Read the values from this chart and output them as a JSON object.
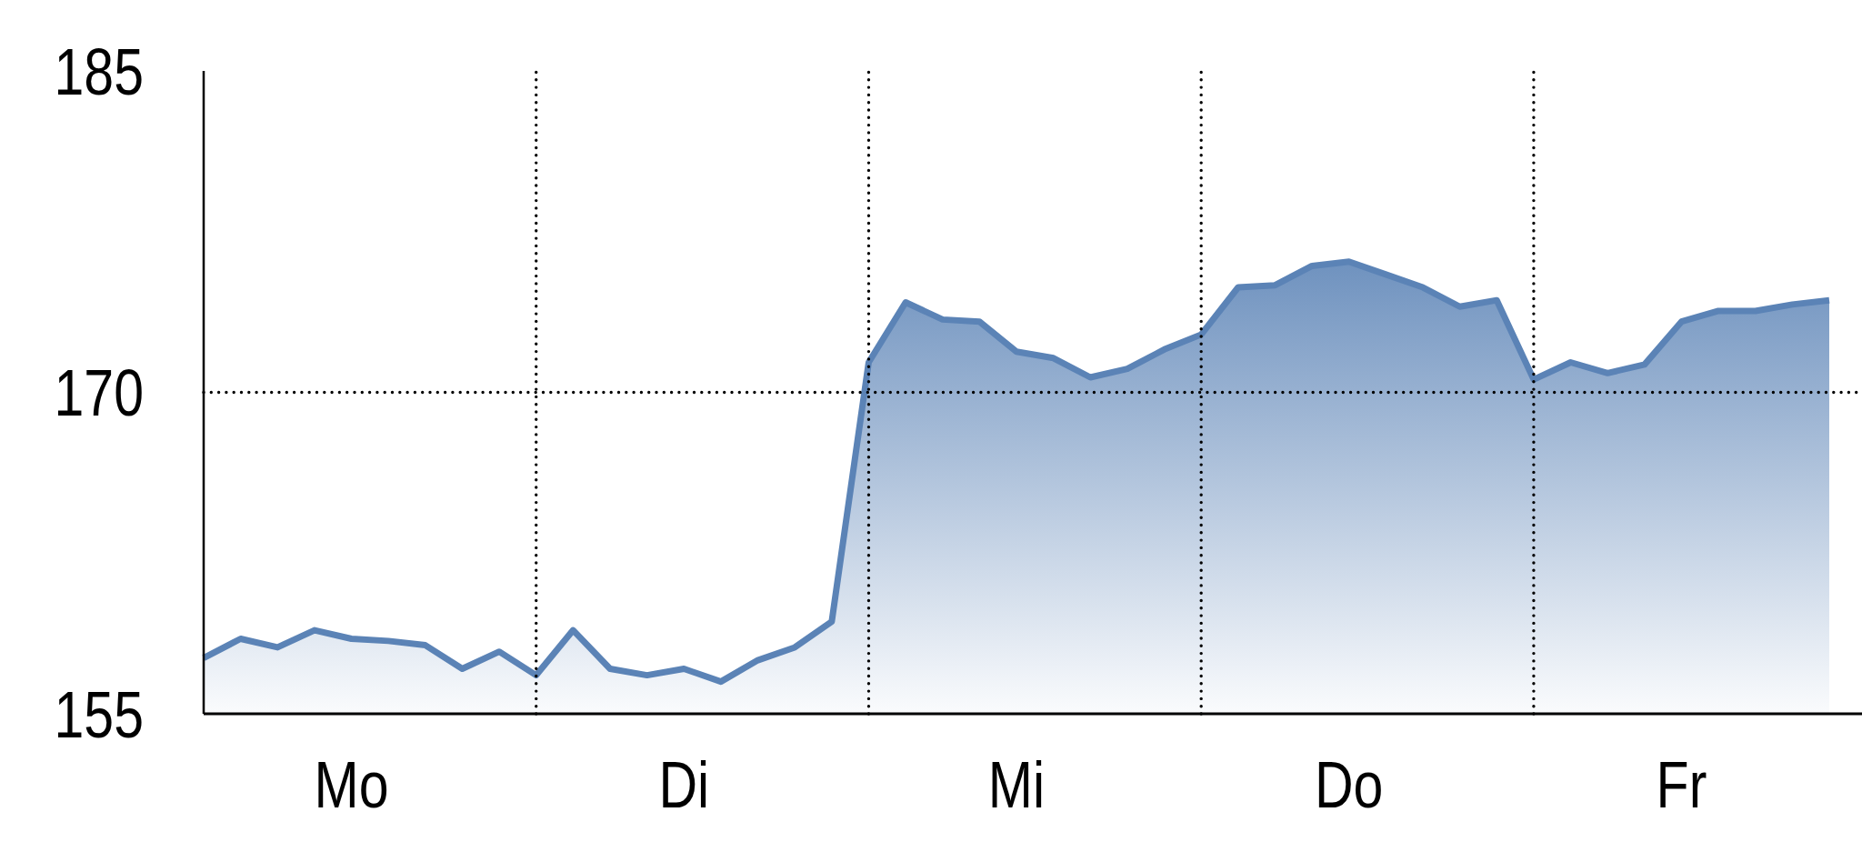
{
  "chart_data": {
    "type": "area",
    "categories": [
      null,
      null,
      null,
      null,
      "Mo",
      null,
      null,
      null,
      null,
      null,
      null,
      null,
      null,
      "Di",
      null,
      null,
      null,
      null,
      null,
      null,
      null,
      null,
      "Mi",
      null,
      null,
      null,
      null,
      null,
      null,
      null,
      null,
      "Do",
      null,
      null,
      null,
      null,
      null,
      null,
      null,
      null,
      "Fr",
      null,
      null,
      null,
      null
    ],
    "values": [
      157.6,
      158.5,
      158.1,
      158.9,
      158.5,
      158.4,
      158.2,
      157.1,
      157.9,
      156.8,
      158.9,
      157.1,
      156.8,
      157.1,
      156.5,
      157.5,
      158.1,
      159.3,
      171.4,
      174.2,
      173.4,
      173.3,
      171.9,
      171.6,
      170.7,
      171.1,
      172.0,
      172.7,
      174.9,
      175.0,
      175.9,
      176.1,
      175.5,
      174.9,
      174.0,
      174.3,
      170.6,
      171.4,
      170.9,
      171.3,
      173.3,
      173.8,
      173.8,
      174.1,
      174.3
    ],
    "color": "#5b83b6",
    "ylim": [
      155,
      185
    ],
    "yticks": [
      155,
      170,
      185
    ],
    "grid": true
  }
}
